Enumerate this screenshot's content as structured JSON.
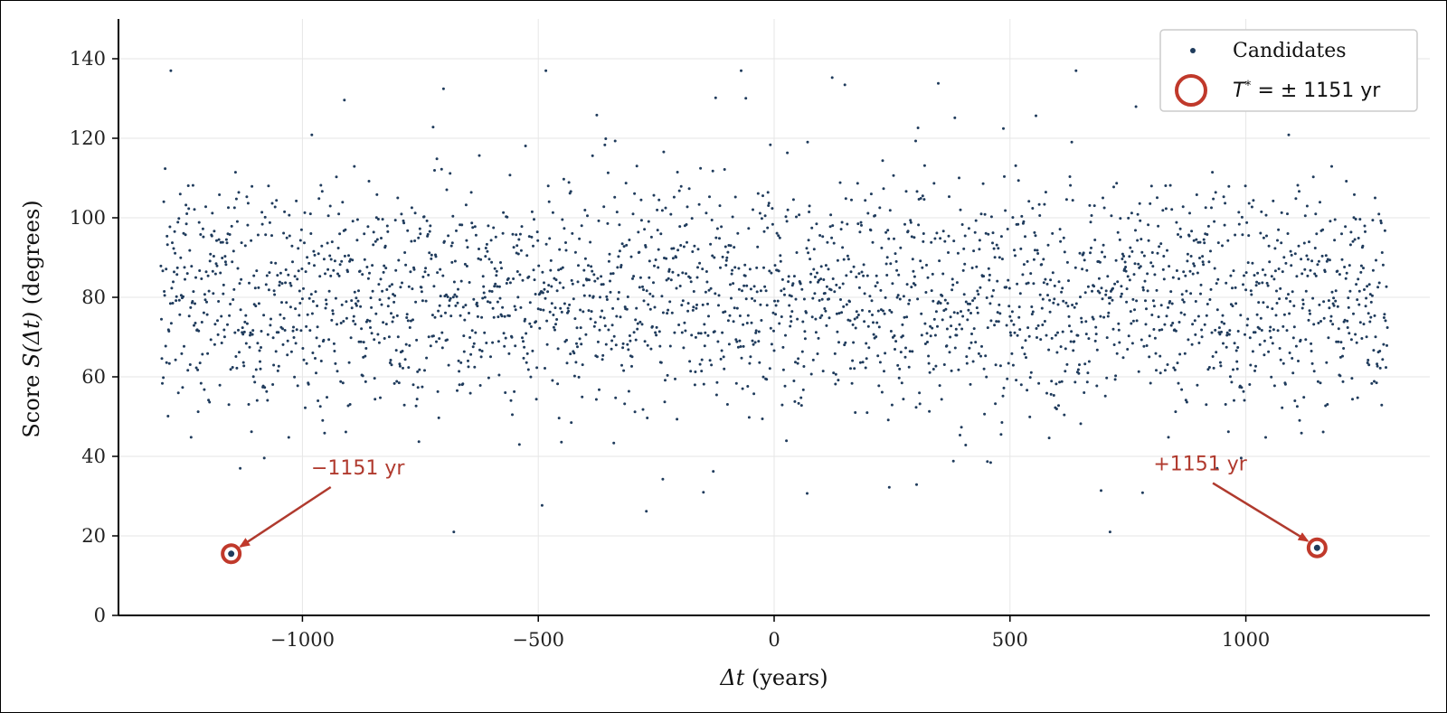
{
  "chart_data": {
    "type": "scatter",
    "title": "",
    "xlabel_symbol": "Δt",
    "xlabel_rest": " (years)",
    "ylabel_prefix": "Score ",
    "ylabel_symbol": "S(Δt)",
    "ylabel_rest": " (degrees)",
    "xlim": [
      -1390,
      1390
    ],
    "ylim": [
      0,
      150
    ],
    "xticks": [
      -1000,
      -500,
      0,
      500,
      1000
    ],
    "xtick_labels": [
      "−1000",
      "−500",
      "0",
      "500",
      "1000"
    ],
    "yticks": [
      0,
      20,
      40,
      60,
      80,
      100,
      120,
      140
    ],
    "ytick_labels": [
      "0",
      "20",
      "40",
      "60",
      "80",
      "100",
      "120",
      "140"
    ],
    "grid": true,
    "legend_position": "top-right",
    "series": [
      {
        "name": "Candidates",
        "color": "#1f3b5c",
        "marker": "dot",
        "x_range": [
          -1300,
          1300
        ],
        "step_years": 1,
        "y_distribution": "dense scatter concentrated between ~40 and ~120 degrees, centered near 80",
        "highlighted_points": [
          {
            "x": -1151,
            "y": 15.5
          },
          {
            "x": 1151,
            "y": 17.0
          }
        ]
      }
    ],
    "legend": [
      {
        "label": "Candidates",
        "marker": "dot",
        "color": "#1f3b5c"
      },
      {
        "label_prefix": "T",
        "label_sup": "*",
        "label_rest": " = ± 1151 yr",
        "marker": "ring",
        "color": "#c0392b"
      }
    ],
    "annotations": [
      {
        "text": "−1151 yr",
        "target_x": -1151,
        "target_y": 15.5,
        "text_x": -940,
        "text_y": 35,
        "color": "#b03a2e"
      },
      {
        "text": "+1151 yr",
        "target_x": 1151,
        "target_y": 17.0,
        "text_x": 930,
        "text_y": 36,
        "color": "#b03a2e"
      }
    ],
    "colors": {
      "points": "#1f3b5c",
      "highlight": "#c0392b",
      "grid": "#e6e6e6",
      "axis": "#000000"
    }
  }
}
